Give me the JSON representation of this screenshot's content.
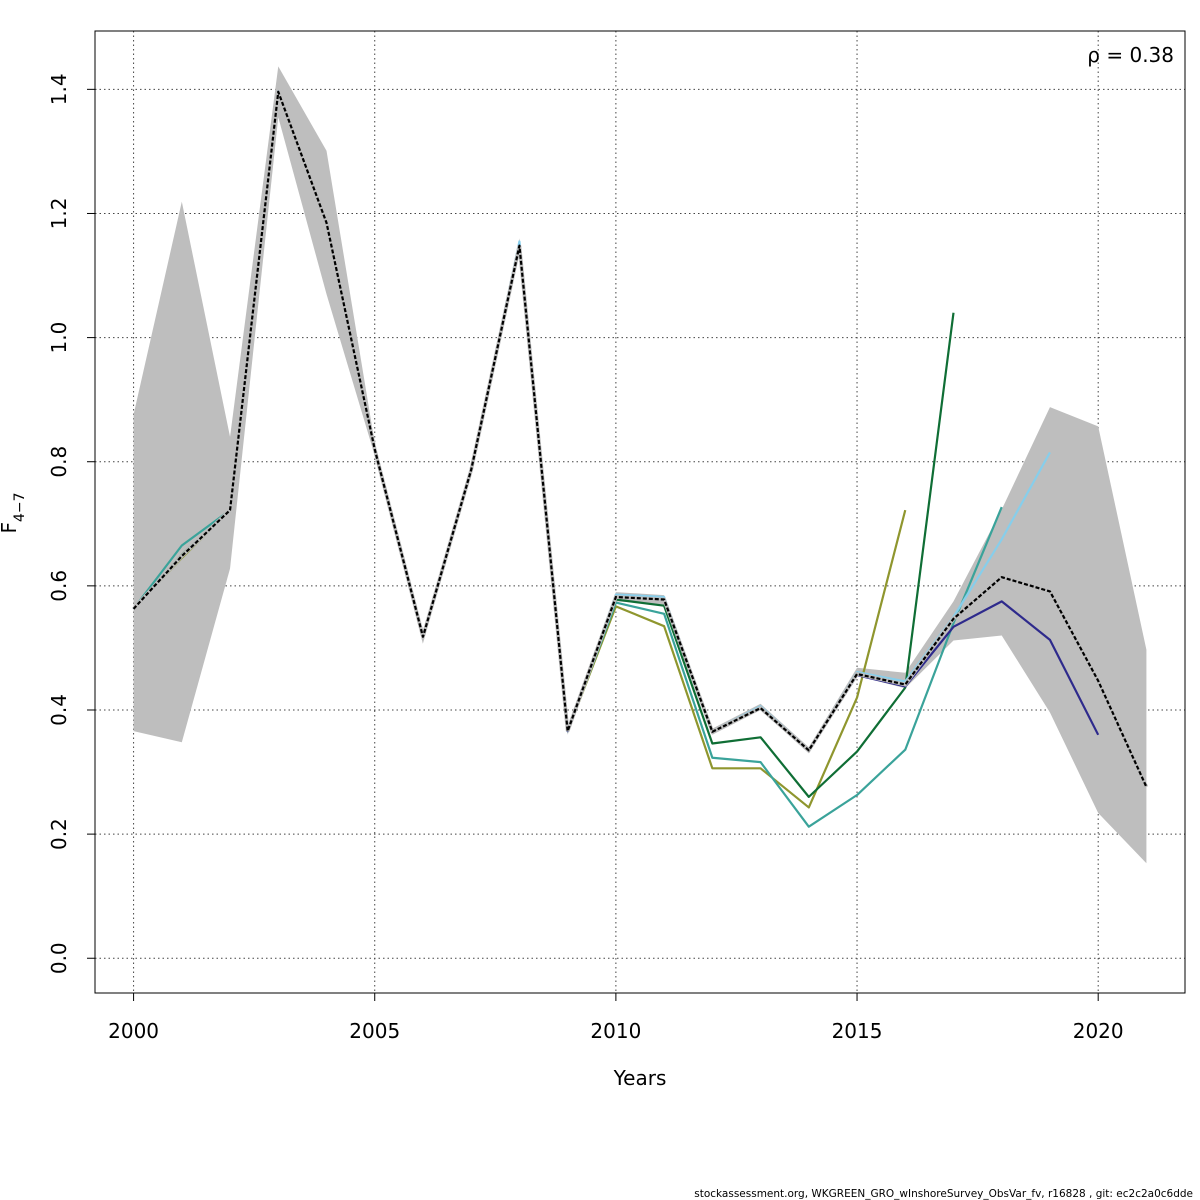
{
  "chart_data": {
    "type": "line",
    "xlabel": "Years",
    "ylabel_main": "F",
    "ylabel_sub": "4−7",
    "annotation": "ρ = 0.38",
    "footer": "stockassessment.org, WKGREEN_GRO_wInshoreSurvey_ObsVar_fv, r16828 , git: ec2c2a0c6dde",
    "xlim": [
      1999.2,
      2021.8
    ],
    "ylim": [
      -0.056,
      1.494
    ],
    "x_ticks": [
      2000,
      2005,
      2010,
      2015,
      2020
    ],
    "y_ticks": [
      0.0,
      0.2,
      0.4,
      0.6,
      0.8,
      1.0,
      1.2,
      1.4
    ],
    "x_tick_labels": [
      "2000",
      "2005",
      "2010",
      "2015",
      "2020"
    ],
    "y_tick_labels": [
      "0.0",
      "0.2",
      "0.4",
      "0.6",
      "0.8",
      "1.0",
      "1.2",
      "1.4"
    ],
    "grid": true,
    "band_color": "#bebebe",
    "confidence_band": {
      "x": [
        2000,
        2001,
        2002,
        2003,
        2004,
        2005,
        2006,
        2007,
        2008,
        2009,
        2010,
        2011,
        2012,
        2013,
        2014,
        2015,
        2016,
        2017,
        2018,
        2019,
        2020,
        2021
      ],
      "lower": [
        0.366,
        0.348,
        0.628,
        1.355,
        1.07,
        0.81,
        0.51,
        0.78,
        1.14,
        0.36,
        0.575,
        0.57,
        0.36,
        0.4,
        0.33,
        0.455,
        0.435,
        0.512,
        0.52,
        0.396,
        0.234,
        0.153
      ],
      "upper": [
        0.876,
        1.219,
        0.84,
        1.437,
        1.301,
        0.83,
        0.525,
        0.795,
        1.16,
        0.375,
        0.59,
        0.585,
        0.37,
        0.41,
        0.34,
        0.468,
        0.46,
        0.575,
        0.723,
        0.888,
        0.857,
        0.497
      ]
    },
    "series": [
      {
        "color": "#000000",
        "dashed": true,
        "width": 2.2,
        "x": [
          2000,
          2001,
          2002,
          2003,
          2004,
          2005,
          2006,
          2007,
          2008,
          2009,
          2010,
          2011,
          2012,
          2013,
          2014,
          2015,
          2016,
          2017,
          2018,
          2019,
          2020,
          2021
        ],
        "values": [
          0.563,
          0.648,
          0.722,
          1.396,
          1.185,
          0.82,
          0.518,
          0.787,
          1.148,
          0.366,
          0.582,
          0.578,
          0.365,
          0.403,
          0.335,
          0.458,
          0.441,
          0.547,
          0.614,
          0.591,
          0.447,
          0.276
        ]
      },
      {
        "color": "#2e2a8c",
        "dashed": false,
        "width": 2.2,
        "x": [
          2000,
          2001,
          2002,
          2003,
          2004,
          2005,
          2006,
          2007,
          2008,
          2009,
          2010,
          2011,
          2012,
          2013,
          2014,
          2015,
          2016,
          2017,
          2018,
          2019,
          2020
        ],
        "values": [
          0.563,
          0.648,
          0.722,
          1.396,
          1.185,
          0.82,
          0.518,
          0.787,
          1.148,
          0.366,
          0.582,
          0.578,
          0.364,
          0.403,
          0.334,
          0.456,
          0.438,
          0.534,
          0.575,
          0.513,
          0.36
        ]
      },
      {
        "color": "#87ceeb",
        "dashed": false,
        "width": 2.2,
        "x": [
          2000,
          2001,
          2002,
          2003,
          2004,
          2005,
          2006,
          2007,
          2008,
          2009,
          2010,
          2011,
          2012,
          2013,
          2014,
          2015,
          2016,
          2017,
          2018,
          2019
        ],
        "values": [
          0.563,
          0.648,
          0.722,
          1.396,
          1.185,
          0.82,
          0.518,
          0.787,
          1.155,
          0.366,
          0.586,
          0.582,
          0.366,
          0.406,
          0.336,
          0.461,
          0.446,
          0.55,
          0.675,
          0.815
        ]
      },
      {
        "color": "#3aa39a",
        "dashed": false,
        "width": 2.2,
        "x": [
          2000,
          2001,
          2002,
          2003,
          2004,
          2005,
          2006,
          2007,
          2008,
          2009,
          2010,
          2011,
          2012,
          2013,
          2014,
          2015,
          2016,
          2017,
          2018
        ],
        "values": [
          0.563,
          0.665,
          0.722,
          1.396,
          1.185,
          0.82,
          0.518,
          0.787,
          1.148,
          0.366,
          0.573,
          0.555,
          0.323,
          0.316,
          0.212,
          0.263,
          0.336,
          0.54,
          0.727
        ]
      },
      {
        "color": "#0f6e35",
        "dashed": false,
        "width": 2.2,
        "x": [
          2000,
          2001,
          2002,
          2003,
          2004,
          2005,
          2006,
          2007,
          2008,
          2009,
          2010,
          2011,
          2012,
          2013,
          2014,
          2015,
          2016,
          2017
        ],
        "values": [
          0.563,
          0.65,
          0.722,
          1.396,
          1.185,
          0.82,
          0.518,
          0.787,
          1.148,
          0.366,
          0.578,
          0.568,
          0.346,
          0.356,
          0.26,
          0.333,
          0.436,
          1.04
        ]
      },
      {
        "color": "#8f962e",
        "dashed": false,
        "width": 2.2,
        "x": [
          2000,
          2001,
          2002,
          2003,
          2004,
          2005,
          2006,
          2007,
          2008,
          2009,
          2010,
          2011,
          2012,
          2013,
          2014,
          2015,
          2016
        ],
        "values": [
          0.563,
          0.645,
          0.722,
          1.394,
          1.183,
          0.82,
          0.518,
          0.787,
          1.148,
          0.366,
          0.567,
          0.535,
          0.306,
          0.306,
          0.243,
          0.42,
          0.722
        ]
      }
    ]
  }
}
